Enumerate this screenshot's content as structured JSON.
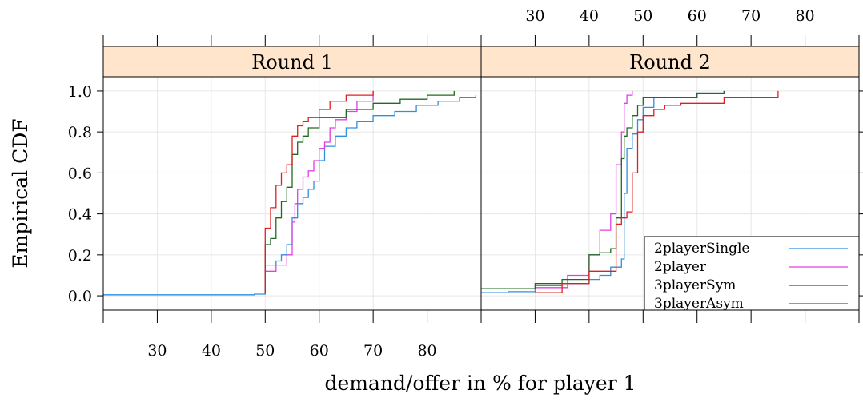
{
  "chart_data": {
    "type": "line",
    "step": true,
    "ylabel": "Empirical CDF",
    "xlabel": "demand/offer in % for player 1",
    "xlim": [
      20,
      90
    ],
    "ylim": [
      -0.07,
      1.07
    ],
    "x_ticks": [
      30,
      40,
      50,
      60,
      70,
      80
    ],
    "y_ticks": [
      0.0,
      0.2,
      0.4,
      0.6,
      0.8,
      1.0
    ],
    "x_tick_labels": [
      "30",
      "40",
      "50",
      "60",
      "70",
      "80"
    ],
    "y_tick_labels": [
      "0.0",
      "0.2",
      "0.4",
      "0.6",
      "0.8",
      "1.0"
    ],
    "grid": true,
    "legend_position": "bottom-right",
    "legend_panel": "Round 2",
    "colors": {
      "2playerSingle": "#2f8fe0",
      "2player": "#e040e0",
      "3playerSym": "#1f6b1f",
      "3playerAsym": "#e02020",
      "strip": "#ffe5cc",
      "grid": "#e6e6e6"
    },
    "panels": [
      {
        "label": "Round 1",
        "series": [
          {
            "name": "2playerSingle",
            "points": [
              [
                20,
                0.005
              ],
              [
                45,
                0.005
              ],
              [
                48,
                0.008
              ],
              [
                50,
                0.01
              ],
              [
                50,
                0.15
              ],
              [
                52,
                0.17
              ],
              [
                53,
                0.2
              ],
              [
                54,
                0.25
              ],
              [
                55,
                0.38
              ],
              [
                56,
                0.45
              ],
              [
                57,
                0.48
              ],
              [
                58,
                0.52
              ],
              [
                59,
                0.56
              ],
              [
                60,
                0.66
              ],
              [
                61,
                0.73
              ],
              [
                63,
                0.78
              ],
              [
                65,
                0.82
              ],
              [
                67,
                0.85
              ],
              [
                70,
                0.88
              ],
              [
                74,
                0.9
              ],
              [
                78,
                0.93
              ],
              [
                82,
                0.95
              ],
              [
                86,
                0.97
              ],
              [
                89,
                0.98
              ]
            ]
          },
          {
            "name": "2player",
            "points": [
              [
                50,
                0.01
              ],
              [
                50,
                0.12
              ],
              [
                52,
                0.15
              ],
              [
                54,
                0.2
              ],
              [
                55,
                0.36
              ],
              [
                55.5,
                0.45
              ],
              [
                56,
                0.52
              ],
              [
                57,
                0.58
              ],
              [
                58,
                0.61
              ],
              [
                59,
                0.66
              ],
              [
                60,
                0.72
              ],
              [
                61,
                0.75
              ],
              [
                62,
                0.82
              ],
              [
                63,
                0.86
              ],
              [
                65,
                0.9
              ],
              [
                67,
                0.95
              ],
              [
                70,
                1.0
              ]
            ]
          },
          {
            "name": "3playerSym",
            "points": [
              [
                50,
                0.01
              ],
              [
                50,
                0.25
              ],
              [
                51,
                0.28
              ],
              [
                52,
                0.38
              ],
              [
                53,
                0.46
              ],
              [
                54,
                0.53
              ],
              [
                55,
                0.69
              ],
              [
                56,
                0.75
              ],
              [
                57,
                0.78
              ],
              [
                58,
                0.82
              ],
              [
                60,
                0.87
              ],
              [
                63,
                0.87
              ],
              [
                65,
                0.91
              ],
              [
                70,
                0.94
              ],
              [
                75,
                0.96
              ],
              [
                80,
                0.98
              ],
              [
                85,
                1.0
              ]
            ]
          },
          {
            "name": "3playerAsym",
            "points": [
              [
                50,
                0.01
              ],
              [
                50,
                0.33
              ],
              [
                51,
                0.43
              ],
              [
                52,
                0.54
              ],
              [
                53,
                0.6
              ],
              [
                54,
                0.64
              ],
              [
                55,
                0.78
              ],
              [
                56,
                0.83
              ],
              [
                57,
                0.85
              ],
              [
                58,
                0.87
              ],
              [
                60,
                0.91
              ],
              [
                62,
                0.95
              ],
              [
                65,
                0.98
              ],
              [
                70,
                1.0
              ]
            ]
          }
        ]
      },
      {
        "label": "Round 2",
        "series": [
          {
            "name": "2playerSingle",
            "points": [
              [
                20,
                0.015
              ],
              [
                25,
                0.02
              ],
              [
                30,
                0.05
              ],
              [
                35,
                0.06
              ],
              [
                40,
                0.08
              ],
              [
                42,
                0.1
              ],
              [
                44,
                0.14
              ],
              [
                46,
                0.18
              ],
              [
                46.5,
                0.5
              ],
              [
                47,
                0.72
              ],
              [
                48,
                0.79
              ],
              [
                49,
                0.86
              ],
              [
                50,
                0.92
              ],
              [
                52,
                0.97
              ],
              [
                60,
                0.99
              ],
              [
                65,
                1.0
              ]
            ]
          },
          {
            "name": "2player",
            "points": [
              [
                30,
                0.04
              ],
              [
                36,
                0.1
              ],
              [
                40,
                0.2
              ],
              [
                42,
                0.32
              ],
              [
                44,
                0.4
              ],
              [
                45,
                0.64
              ],
              [
                46,
                0.8
              ],
              [
                46.5,
                0.94
              ],
              [
                47,
                0.98
              ],
              [
                48,
                1.0
              ]
            ]
          },
          {
            "name": "3playerSym",
            "points": [
              [
                20,
                0.035
              ],
              [
                30,
                0.06
              ],
              [
                35,
                0.08
              ],
              [
                40,
                0.2
              ],
              [
                42,
                0.21
              ],
              [
                44,
                0.23
              ],
              [
                45,
                0.38
              ],
              [
                46,
                0.67
              ],
              [
                46.5,
                0.78
              ],
              [
                47,
                0.82
              ],
              [
                48,
                0.88
              ],
              [
                49,
                0.93
              ],
              [
                50,
                0.97
              ],
              [
                60,
                0.99
              ],
              [
                65,
                1.0
              ]
            ]
          },
          {
            "name": "3playerAsym",
            "points": [
              [
                30,
                0.015
              ],
              [
                35,
                0.06
              ],
              [
                40,
                0.12
              ],
              [
                45,
                0.35
              ],
              [
                46,
                0.38
              ],
              [
                47,
                0.41
              ],
              [
                48,
                0.6
              ],
              [
                49,
                0.8
              ],
              [
                50,
                0.88
              ],
              [
                52,
                0.91
              ],
              [
                54,
                0.93
              ],
              [
                57,
                0.94
              ],
              [
                60,
                0.94
              ],
              [
                65,
                0.97
              ],
              [
                75,
                1.0
              ]
            ]
          }
        ]
      }
    ],
    "legend": [
      "2playerSingle",
      "2player",
      "3playerSym",
      "3playerAsym"
    ]
  }
}
